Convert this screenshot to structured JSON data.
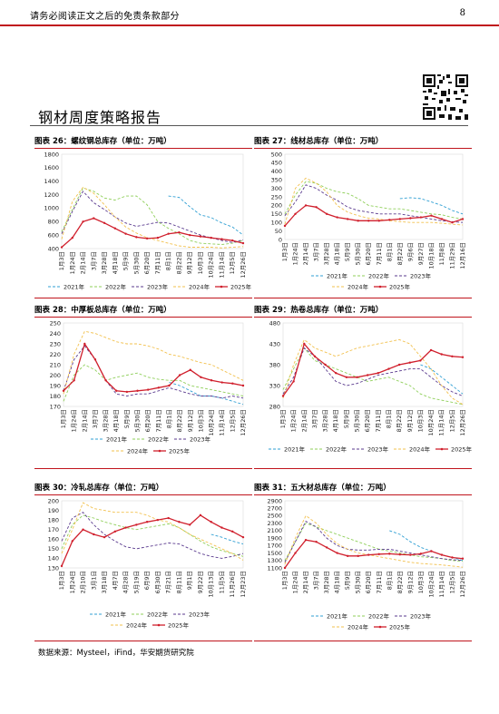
{
  "header": {
    "disclaimer": "请务必阅读正文之后的免责条款部分",
    "page_number": "8"
  },
  "report_title": "钢材周度策略报告",
  "source_note": "数据来源：Mysteel，iFind，华安期货研究院",
  "legend": {
    "series_names": [
      "2021年",
      "2022年",
      "2023年",
      "2024年",
      "2025年"
    ],
    "colors": [
      "#2f9fd3",
      "#8fcf5a",
      "#5a3a8e",
      "#f2c14e",
      "#d01f2c"
    ]
  },
  "chart_data": [
    {
      "id": "c26",
      "type": "line",
      "title": "图表 26：螺纹钢总库存（单位：万吨）",
      "yticks": [
        "400",
        "600",
        "800",
        "1000",
        "1200",
        "1400",
        "1600",
        "1800"
      ],
      "ylim": [
        400,
        1800
      ],
      "xticks": [
        "1月3日",
        "1月24日",
        "2月14日",
        "3月7日",
        "3月28日",
        "4月18日",
        "5月9日",
        "5月30日",
        "6月20日",
        "7月11日",
        "8月1日",
        "8月22日",
        "9月12日",
        "10月3日",
        "10月24日",
        "11月14日",
        "12月5日",
        "12月26日"
      ],
      "series": [
        {
          "name": "2021年",
          "values": [
            null,
            null,
            null,
            null,
            null,
            null,
            null,
            null,
            null,
            null,
            1180,
            1160,
            1020,
            900,
            860,
            780,
            720,
            600
          ]
        },
        {
          "name": "2022年",
          "values": [
            650,
            980,
            1300,
            1250,
            1150,
            1120,
            1180,
            1180,
            1050,
            800,
            700,
            620,
            520,
            480,
            470,
            460,
            480,
            520
          ]
        },
        {
          "name": "2023年",
          "values": [
            620,
            950,
            1250,
            1080,
            980,
            870,
            780,
            730,
            760,
            790,
            780,
            720,
            660,
            600,
            560,
            520,
            490,
            530
          ]
        },
        {
          "name": "2024年",
          "values": [
            540,
            1100,
            1310,
            1220,
            1050,
            870,
            720,
            630,
            560,
            520,
            480,
            440,
            420,
            420,
            420,
            410,
            420,
            430
          ]
        },
        {
          "name": "2025年",
          "values": [
            420,
            560,
            800,
            850,
            780,
            700,
            620,
            570,
            550,
            560,
            620,
            640,
            600,
            580,
            560,
            540,
            520,
            480
          ]
        }
      ]
    },
    {
      "id": "c27",
      "type": "line",
      "title": "图表 27：线材总库存（单位：万吨）",
      "yticks": [
        "0",
        "50",
        "100",
        "150",
        "200",
        "250",
        "300",
        "350",
        "400",
        "450",
        "500"
      ],
      "ylim": [
        0,
        500
      ],
      "xticks": [
        "1月3日",
        "1月24日",
        "2月14日",
        "3月7日",
        "3月28日",
        "4月18日",
        "5月9日",
        "5月30日",
        "6月20日",
        "7月11日",
        "8月1日",
        "8月22日",
        "9月6日",
        "9月27日",
        "10月18日",
        "11月8日",
        "11月29日",
        "12月16日"
      ],
      "series": [
        {
          "name": "2021年",
          "values": [
            null,
            null,
            null,
            null,
            null,
            null,
            null,
            null,
            null,
            null,
            null,
            240,
            245,
            240,
            220,
            200,
            170,
            150
          ]
        },
        {
          "name": "2022年",
          "values": [
            150,
            260,
            340,
            330,
            300,
            280,
            270,
            240,
            200,
            190,
            180,
            180,
            170,
            160,
            150,
            145,
            130,
            120
          ]
        },
        {
          "name": "2023年",
          "values": [
            140,
            220,
            320,
            300,
            260,
            230,
            190,
            170,
            160,
            150,
            150,
            150,
            140,
            130,
            120,
            110,
            105,
            100
          ]
        },
        {
          "name": "2024年",
          "values": [
            90,
            300,
            360,
            330,
            280,
            200,
            160,
            140,
            125,
            120,
            110,
            105,
            100,
            100,
            100,
            95,
            90,
            85
          ]
        },
        {
          "name": "2025年",
          "values": [
            80,
            150,
            200,
            190,
            150,
            130,
            120,
            110,
            110,
            110,
            115,
            120,
            125,
            130,
            140,
            120,
            100,
            120
          ]
        }
      ]
    },
    {
      "id": "c28",
      "type": "line",
      "title": "图表 28：中厚板总库存（单位：万吨）",
      "yticks": [
        "170",
        "180",
        "190",
        "200",
        "210",
        "220",
        "230",
        "240",
        "250"
      ],
      "ylim": [
        170,
        250
      ],
      "xticks": [
        "1月3日",
        "1月24日",
        "2月14日",
        "3月7日",
        "3月28日",
        "4月18日",
        "5月9日",
        "5月30日",
        "6月20日",
        "7月11日",
        "8月1日",
        "8月22日",
        "9月12日",
        "10月3日",
        "10月24日",
        "11月14日",
        "12月5日",
        "12月26日"
      ],
      "series": [
        {
          "name": "2021年",
          "values": [
            null,
            null,
            null,
            null,
            null,
            null,
            null,
            null,
            null,
            null,
            193,
            190,
            185,
            180,
            180,
            178,
            175,
            172
          ]
        },
        {
          "name": "2022年",
          "values": [
            175,
            200,
            210,
            205,
            195,
            198,
            200,
            202,
            198,
            196,
            195,
            195,
            190,
            188,
            186,
            184,
            182,
            180
          ]
        },
        {
          "name": "2023年",
          "values": [
            185,
            215,
            228,
            215,
            195,
            182,
            180,
            182,
            182,
            185,
            188,
            185,
            182,
            180,
            180,
            178,
            180,
            178
          ]
        },
        {
          "name": "2024年",
          "values": [
            182,
            220,
            242,
            240,
            236,
            232,
            230,
            230,
            228,
            225,
            220,
            218,
            215,
            212,
            210,
            205,
            200,
            195
          ]
        },
        {
          "name": "2025年",
          "values": [
            185,
            195,
            230,
            215,
            195,
            185,
            184,
            185,
            186,
            188,
            190,
            200,
            205,
            198,
            195,
            193,
            192,
            190
          ]
        }
      ]
    },
    {
      "id": "c29",
      "type": "line",
      "title": "图表 29：热卷总库存（单位：万吨）",
      "yticks": [
        "280",
        "330",
        "380",
        "430",
        "480"
      ],
      "ylim": [
        280,
        480
      ],
      "xticks": [
        "1月3日",
        "1月24日",
        "2月14日",
        "3月7日",
        "3月28日",
        "4月18日",
        "5月9日",
        "5月30日",
        "6月20日",
        "7月11日",
        "8月1日",
        "8月22日",
        "9月12日",
        "10月3日",
        "10月24日",
        "11月14日",
        "12月5日",
        "12月26日"
      ],
      "series": [
        {
          "name": "2021年",
          "values": [
            null,
            null,
            null,
            null,
            null,
            null,
            null,
            null,
            null,
            null,
            null,
            null,
            null,
            380,
            370,
            350,
            330,
            310
          ]
        },
        {
          "name": "2022年",
          "values": [
            320,
            370,
            420,
            390,
            380,
            370,
            360,
            350,
            340,
            345,
            350,
            340,
            330,
            310,
            300,
            295,
            290,
            285
          ]
        },
        {
          "name": "2023年",
          "values": [
            310,
            350,
            420,
            400,
            370,
            340,
            330,
            335,
            345,
            355,
            360,
            365,
            370,
            370,
            350,
            330,
            315,
            305
          ]
        },
        {
          "name": "2024年",
          "values": [
            300,
            380,
            440,
            420,
            410,
            400,
            410,
            420,
            425,
            430,
            435,
            440,
            430,
            400,
            370,
            330,
            300,
            285
          ]
        },
        {
          "name": "2025年",
          "values": [
            305,
            340,
            430,
            400,
            380,
            360,
            350,
            350,
            355,
            360,
            370,
            380,
            385,
            390,
            415,
            405,
            400,
            398
          ]
        }
      ]
    },
    {
      "id": "c30",
      "type": "line",
      "title": "图表 30：冷轧总库存（单位：万吨）",
      "yticks": [
        "130",
        "140",
        "150",
        "160",
        "170",
        "180",
        "190",
        "200"
      ],
      "ylim": [
        130,
        200
      ],
      "xticks": [
        "1月3日",
        "1月24日",
        "2月10日",
        "3月1日",
        "3月18日",
        "4月7日",
        "4月28日",
        "5月19日",
        "6月9日",
        "6月30日",
        "7月21日",
        "8月11日",
        "9月1日",
        "9月22日",
        "10月13日",
        "11月5日",
        "11月26日",
        "12月23日"
      ],
      "series": [
        {
          "name": "2021年",
          "values": [
            null,
            null,
            null,
            null,
            null,
            null,
            null,
            null,
            null,
            null,
            null,
            null,
            null,
            null,
            165,
            162,
            158,
            155
          ]
        },
        {
          "name": "2022年",
          "values": [
            150,
            175,
            185,
            182,
            178,
            175,
            172,
            170,
            172,
            174,
            176,
            172,
            165,
            158,
            152,
            148,
            145,
            142
          ]
        },
        {
          "name": "2023年",
          "values": [
            158,
            182,
            188,
            175,
            165,
            158,
            152,
            150,
            152,
            154,
            156,
            155,
            150,
            145,
            142,
            140,
            142,
            145
          ]
        },
        {
          "name": "2024年",
          "values": [
            145,
            170,
            198,
            192,
            190,
            188,
            188,
            188,
            185,
            180,
            178,
            172,
            165,
            160,
            155,
            150,
            145,
            138
          ]
        },
        {
          "name": "2025年",
          "values": [
            132,
            158,
            170,
            165,
            162,
            168,
            172,
            175,
            178,
            180,
            182,
            178,
            175,
            185,
            178,
            172,
            168,
            162
          ]
        }
      ]
    },
    {
      "id": "c31",
      "type": "line",
      "title": "图表 31：五大材总库存（单位：万吨）",
      "yticks": [
        "1100",
        "1300",
        "1500",
        "1700",
        "1900",
        "2100",
        "2300",
        "2500",
        "2700",
        "2900"
      ],
      "ylim": [
        1100,
        2900
      ],
      "xticks": [
        "1月3日",
        "1月24日",
        "2月14日",
        "3月7日",
        "3月28日",
        "4月18日",
        "5月9日",
        "5月30日",
        "6月20日",
        "7月11日",
        "8月1日",
        "8月22日",
        "9月12日",
        "10月3日",
        "10月24日",
        "11月14日",
        "12月5日",
        "12月26日"
      ],
      "series": [
        {
          "name": "2021年",
          "values": [
            null,
            null,
            null,
            null,
            null,
            null,
            null,
            null,
            null,
            null,
            2100,
            2000,
            1800,
            1650,
            1550,
            1450,
            1380,
            1300
          ]
        },
        {
          "name": "2022年",
          "values": [
            1300,
            1800,
            2300,
            2200,
            2100,
            2000,
            1900,
            1800,
            1700,
            1600,
            1550,
            1500,
            1450,
            1400,
            1380,
            1350,
            1300,
            1280
          ]
        },
        {
          "name": "2023年",
          "values": [
            1250,
            1800,
            2350,
            2200,
            1900,
            1700,
            1600,
            1580,
            1580,
            1600,
            1600,
            1550,
            1500,
            1450,
            1400,
            1350,
            1320,
            1300
          ]
        },
        {
          "name": "2024年",
          "values": [
            1200,
            1900,
            2500,
            2300,
            2000,
            1750,
            1600,
            1500,
            1450,
            1400,
            1350,
            1300,
            1250,
            1220,
            1200,
            1180,
            1150,
            1120
          ]
        },
        {
          "name": "2025年",
          "values": [
            1100,
            1500,
            1850,
            1800,
            1650,
            1500,
            1420,
            1420,
            1450,
            1470,
            1480,
            1460,
            1450,
            1480,
            1550,
            1450,
            1380,
            1350
          ]
        }
      ]
    }
  ]
}
